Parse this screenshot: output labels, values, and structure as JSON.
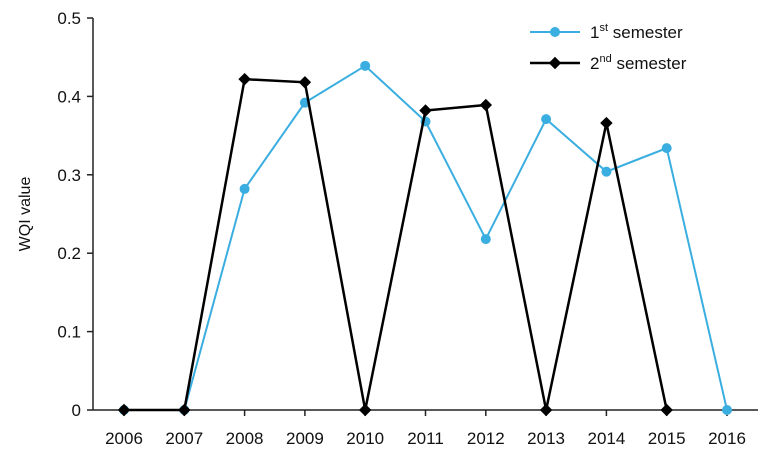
{
  "chart_data": {
    "type": "line",
    "title": "",
    "xlabel": "",
    "ylabel": "WQI value",
    "ylim": [
      0,
      0.5
    ],
    "yticks": [
      "0",
      "0.1",
      "0.2",
      "0.3",
      "0.4",
      "0.5"
    ],
    "x": [
      "2006",
      "2007",
      "2008",
      "2009",
      "2010",
      "2011",
      "2012",
      "2013",
      "2014",
      "2015",
      "2016"
    ],
    "series": [
      {
        "name": "1st semester",
        "name_base": "1",
        "name_sup": "st",
        "name_rest": " semester",
        "color": "#3aaee0",
        "marker": "circle",
        "values": [
          0.0,
          0.0,
          0.282,
          0.392,
          0.439,
          0.368,
          0.218,
          0.371,
          0.304,
          0.334,
          0.0
        ]
      },
      {
        "name": "2nd semester",
        "name_base": "2",
        "name_sup": "nd",
        "name_rest": " semester",
        "color": "#000000",
        "marker": "diamond",
        "values": [
          0.0,
          0.0,
          0.422,
          0.418,
          0.0,
          0.382,
          0.389,
          0.0,
          0.366,
          0.0,
          null
        ]
      }
    ],
    "grid": false,
    "legend_position": "top-right"
  }
}
